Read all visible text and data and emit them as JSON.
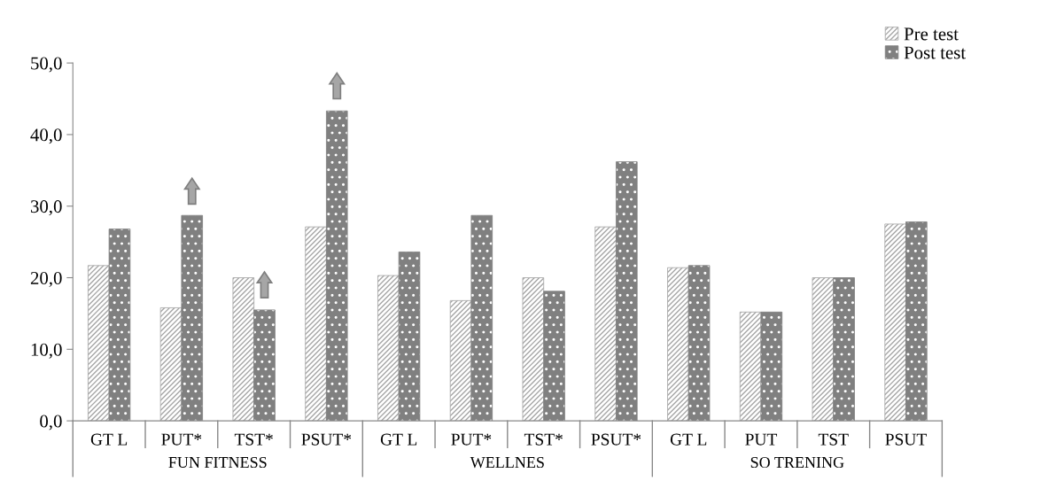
{
  "chart_data": {
    "type": "bar",
    "categories": [
      "GT L",
      "PUT*",
      "TST*",
      "PSUT*",
      "GT L",
      "PUT*",
      "TST*",
      "PSUT*",
      "GT L",
      "PUT",
      "TST",
      "PSUT"
    ],
    "series": [
      {
        "name": "Pre test",
        "color": "#a6a6a6",
        "values": [
          21.7,
          15.8,
          20.0,
          27.1,
          20.3,
          16.8,
          20.0,
          27.1,
          21.4,
          15.2,
          20.0,
          27.5
        ]
      },
      {
        "name": "Post test",
        "color": "#808080",
        "values": [
          26.8,
          28.7,
          15.5,
          43.3,
          23.6,
          28.7,
          18.1,
          36.2,
          21.7,
          15.2,
          20.0,
          27.8
        ]
      }
    ],
    "annotations": [
      "FUN FITNESS",
      "WELLNES",
      "SO TRENING"
    ],
    "ylim": [
      0,
      50
    ],
    "yticks": [
      {
        "value": 0,
        "label": "0,0"
      },
      {
        "value": 10,
        "label": "10,0"
      },
      {
        "value": 20,
        "label": "20,0"
      },
      {
        "value": 30,
        "label": "30,0"
      },
      {
        "value": 40,
        "label": "40,0"
      },
      {
        "value": 50,
        "label": "50,0"
      }
    ],
    "grid": false,
    "legend": "top right"
  }
}
